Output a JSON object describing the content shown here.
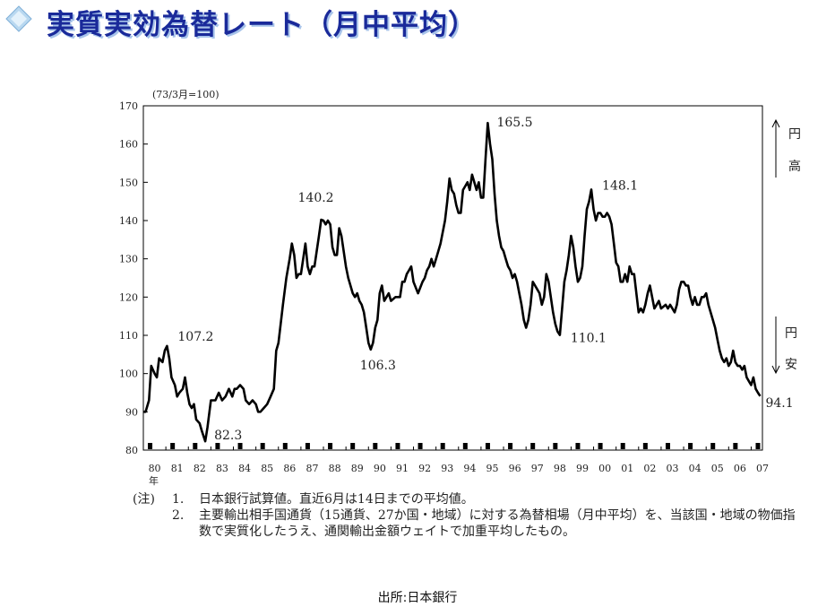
{
  "header": {
    "title": "実質実効為替レート（月中平均）",
    "logo_icon": "diamond-logo-icon",
    "title_color": "#1a2a9a"
  },
  "chart_data": {
    "type": "line",
    "title": "実質実効為替レート（月中平均）",
    "unit_label": "(73/3月=100)",
    "xlabel": "年",
    "x_ticks": [
      "80",
      "81",
      "82",
      "83",
      "84",
      "85",
      "86",
      "87",
      "88",
      "89",
      "90",
      "91",
      "92",
      "93",
      "94",
      "95",
      "96",
      "97",
      "98",
      "99",
      "00",
      "01",
      "02",
      "03",
      "04",
      "05",
      "06",
      "07"
    ],
    "ylim": [
      80,
      170
    ],
    "y_ticks": [
      80,
      90,
      100,
      110,
      120,
      130,
      140,
      150,
      160,
      170
    ],
    "grid": false,
    "line_color": "#000000",
    "series": [
      {
        "points": [
          [
            1980.0,
            90
          ],
          [
            1980.1,
            90
          ],
          [
            1980.25,
            93
          ],
          [
            1980.35,
            102
          ],
          [
            1980.5,
            100
          ],
          [
            1980.6,
            99
          ],
          [
            1980.7,
            104
          ],
          [
            1980.85,
            103
          ],
          [
            1980.95,
            106
          ],
          [
            1981.05,
            107.2
          ],
          [
            1981.15,
            104
          ],
          [
            1981.25,
            99
          ],
          [
            1981.4,
            97
          ],
          [
            1981.5,
            94
          ],
          [
            1981.6,
            95
          ],
          [
            1981.75,
            96
          ],
          [
            1981.85,
            99
          ],
          [
            1981.95,
            95
          ],
          [
            1982.05,
            92
          ],
          [
            1982.15,
            91
          ],
          [
            1982.25,
            92
          ],
          [
            1982.35,
            88
          ],
          [
            1982.5,
            87
          ],
          [
            1982.6,
            85
          ],
          [
            1982.75,
            82.3
          ],
          [
            1982.85,
            86
          ],
          [
            1983.0,
            93
          ],
          [
            1983.2,
            93
          ],
          [
            1983.35,
            95
          ],
          [
            1983.5,
            93
          ],
          [
            1983.65,
            94
          ],
          [
            1983.8,
            96
          ],
          [
            1983.95,
            94
          ],
          [
            1984.05,
            96
          ],
          [
            1984.15,
            96
          ],
          [
            1984.3,
            97
          ],
          [
            1984.45,
            96
          ],
          [
            1984.55,
            93
          ],
          [
            1984.7,
            92
          ],
          [
            1984.85,
            93
          ],
          [
            1985.0,
            92
          ],
          [
            1985.1,
            90
          ],
          [
            1985.2,
            90
          ],
          [
            1985.35,
            91
          ],
          [
            1985.5,
            92
          ],
          [
            1985.65,
            94
          ],
          [
            1985.8,
            96
          ],
          [
            1985.9,
            106
          ],
          [
            1986.0,
            108
          ],
          [
            1986.1,
            113
          ],
          [
            1986.2,
            118
          ],
          [
            1986.35,
            125
          ],
          [
            1986.5,
            130
          ],
          [
            1986.6,
            134
          ],
          [
            1986.7,
            131
          ],
          [
            1986.8,
            125
          ],
          [
            1986.9,
            126
          ],
          [
            1987.0,
            126
          ],
          [
            1987.1,
            130
          ],
          [
            1987.2,
            134
          ],
          [
            1987.3,
            128
          ],
          [
            1987.4,
            126
          ],
          [
            1987.5,
            128
          ],
          [
            1987.6,
            128
          ],
          [
            1987.7,
            132
          ],
          [
            1987.8,
            136
          ],
          [
            1987.9,
            140.2
          ],
          [
            1988.0,
            140
          ],
          [
            1988.1,
            139
          ],
          [
            1988.2,
            140
          ],
          [
            1988.3,
            139
          ],
          [
            1988.4,
            133
          ],
          [
            1988.5,
            131
          ],
          [
            1988.6,
            131
          ],
          [
            1988.7,
            138
          ],
          [
            1988.8,
            136
          ],
          [
            1988.9,
            132
          ],
          [
            1989.0,
            128
          ],
          [
            1989.1,
            125
          ],
          [
            1989.2,
            123
          ],
          [
            1989.3,
            121
          ],
          [
            1989.4,
            120
          ],
          [
            1989.5,
            121
          ],
          [
            1989.6,
            119
          ],
          [
            1989.7,
            118
          ],
          [
            1989.8,
            116
          ],
          [
            1989.9,
            112
          ],
          [
            1990.0,
            108
          ],
          [
            1990.1,
            106.3
          ],
          [
            1990.2,
            108
          ],
          [
            1990.3,
            112
          ],
          [
            1990.4,
            114
          ],
          [
            1990.5,
            121
          ],
          [
            1990.6,
            123
          ],
          [
            1990.7,
            119
          ],
          [
            1990.8,
            120
          ],
          [
            1990.9,
            121
          ],
          [
            1991.0,
            119
          ],
          [
            1991.2,
            120
          ],
          [
            1991.4,
            120
          ],
          [
            1991.5,
            124
          ],
          [
            1991.6,
            124
          ],
          [
            1991.7,
            126
          ],
          [
            1991.8,
            127
          ],
          [
            1991.9,
            128
          ],
          [
            1992.0,
            124
          ],
          [
            1992.2,
            121
          ],
          [
            1992.4,
            124
          ],
          [
            1992.5,
            125
          ],
          [
            1992.6,
            127
          ],
          [
            1992.7,
            128
          ],
          [
            1992.8,
            130
          ],
          [
            1992.9,
            128
          ],
          [
            1993.0,
            130
          ],
          [
            1993.2,
            134
          ],
          [
            1993.4,
            140
          ],
          [
            1993.5,
            145
          ],
          [
            1993.6,
            151
          ],
          [
            1993.7,
            148
          ],
          [
            1993.8,
            147
          ],
          [
            1993.9,
            144
          ],
          [
            1994.0,
            142
          ],
          [
            1994.1,
            142
          ],
          [
            1994.2,
            148
          ],
          [
            1994.3,
            149
          ],
          [
            1994.4,
            150
          ],
          [
            1994.5,
            148
          ],
          [
            1994.6,
            152
          ],
          [
            1994.7,
            150
          ],
          [
            1994.8,
            148
          ],
          [
            1994.9,
            150
          ],
          [
            1995.0,
            146
          ],
          [
            1995.1,
            146
          ],
          [
            1995.2,
            156
          ],
          [
            1995.3,
            165.5
          ],
          [
            1995.4,
            160
          ],
          [
            1995.5,
            156
          ],
          [
            1995.6,
            147
          ],
          [
            1995.7,
            140
          ],
          [
            1995.8,
            136
          ],
          [
            1995.9,
            133
          ],
          [
            1996.0,
            132
          ],
          [
            1996.1,
            130
          ],
          [
            1996.2,
            128
          ],
          [
            1996.3,
            127
          ],
          [
            1996.4,
            125
          ],
          [
            1996.5,
            126
          ],
          [
            1996.6,
            124
          ],
          [
            1996.7,
            121
          ],
          [
            1996.8,
            118
          ],
          [
            1996.9,
            114
          ],
          [
            1997.0,
            112
          ],
          [
            1997.1,
            114
          ],
          [
            1997.2,
            118
          ],
          [
            1997.3,
            124
          ],
          [
            1997.4,
            123
          ],
          [
            1997.5,
            122
          ],
          [
            1997.6,
            121
          ],
          [
            1997.7,
            118
          ],
          [
            1997.8,
            120
          ],
          [
            1997.9,
            126
          ],
          [
            1998.0,
            124
          ],
          [
            1998.1,
            120
          ],
          [
            1998.2,
            116
          ],
          [
            1998.3,
            113
          ],
          [
            1998.4,
            111
          ],
          [
            1998.5,
            110.1
          ],
          [
            1998.6,
            117
          ],
          [
            1998.7,
            124
          ],
          [
            1998.8,
            127
          ],
          [
            1998.9,
            131
          ],
          [
            1999.0,
            136
          ],
          [
            1999.1,
            133
          ],
          [
            1999.2,
            128
          ],
          [
            1999.3,
            124
          ],
          [
            1999.4,
            125
          ],
          [
            1999.5,
            128
          ],
          [
            1999.6,
            136
          ],
          [
            1999.7,
            143
          ],
          [
            1999.8,
            145
          ],
          [
            1999.9,
            148.1
          ],
          [
            2000.0,
            143
          ],
          [
            2000.1,
            140
          ],
          [
            2000.2,
            142
          ],
          [
            2000.3,
            142
          ],
          [
            2000.4,
            141
          ],
          [
            2000.5,
            141
          ],
          [
            2000.6,
            142
          ],
          [
            2000.7,
            141
          ],
          [
            2000.8,
            139
          ],
          [
            2000.9,
            134
          ],
          [
            2001.0,
            129
          ],
          [
            2001.1,
            128
          ],
          [
            2001.2,
            124
          ],
          [
            2001.3,
            124
          ],
          [
            2001.4,
            126
          ],
          [
            2001.5,
            124
          ],
          [
            2001.6,
            128
          ],
          [
            2001.7,
            126
          ],
          [
            2001.8,
            126
          ],
          [
            2001.9,
            121
          ],
          [
            2002.0,
            116
          ],
          [
            2002.1,
            117
          ],
          [
            2002.2,
            116
          ],
          [
            2002.3,
            118
          ],
          [
            2002.4,
            121
          ],
          [
            2002.5,
            123
          ],
          [
            2002.6,
            120
          ],
          [
            2002.7,
            117
          ],
          [
            2002.8,
            118
          ],
          [
            2002.9,
            119
          ],
          [
            2003.0,
            117
          ],
          [
            2003.2,
            118
          ],
          [
            2003.3,
            117
          ],
          [
            2003.4,
            118
          ],
          [
            2003.5,
            117
          ],
          [
            2003.6,
            116
          ],
          [
            2003.7,
            118
          ],
          [
            2003.8,
            122
          ],
          [
            2003.9,
            124
          ],
          [
            2004.0,
            124
          ],
          [
            2004.1,
            123
          ],
          [
            2004.2,
            123
          ],
          [
            2004.3,
            120
          ],
          [
            2004.4,
            118
          ],
          [
            2004.5,
            120
          ],
          [
            2004.6,
            118
          ],
          [
            2004.7,
            118
          ],
          [
            2004.8,
            120
          ],
          [
            2004.9,
            120
          ],
          [
            2005.0,
            121
          ],
          [
            2005.1,
            118
          ],
          [
            2005.2,
            116
          ],
          [
            2005.3,
            114
          ],
          [
            2005.4,
            112
          ],
          [
            2005.5,
            109
          ],
          [
            2005.6,
            106
          ],
          [
            2005.7,
            104
          ],
          [
            2005.8,
            103
          ],
          [
            2005.9,
            104
          ],
          [
            2006.0,
            102
          ],
          [
            2006.1,
            103
          ],
          [
            2006.2,
            106
          ],
          [
            2006.3,
            103
          ],
          [
            2006.4,
            102
          ],
          [
            2006.5,
            102
          ],
          [
            2006.6,
            101
          ],
          [
            2006.7,
            102
          ],
          [
            2006.8,
            99
          ],
          [
            2006.9,
            98
          ],
          [
            2007.0,
            97
          ],
          [
            2007.1,
            99
          ],
          [
            2007.2,
            96
          ],
          [
            2007.3,
            95
          ],
          [
            2007.4,
            94.1
          ]
        ]
      }
    ],
    "annotations": [
      {
        "text": "107.2",
        "x": 1981.05,
        "y": 107.2,
        "anchor": "upper-right"
      },
      {
        "text": "82.3",
        "x": 1982.75,
        "y": 82.3,
        "anchor": "right"
      },
      {
        "text": "140.2",
        "x": 1987.9,
        "y": 140.2,
        "anchor": "above"
      },
      {
        "text": "106.3",
        "x": 1990.1,
        "y": 106.3,
        "anchor": "below-right"
      },
      {
        "text": "165.5",
        "x": 1995.3,
        "y": 165.5,
        "anchor": "right"
      },
      {
        "text": "110.1",
        "x": 1998.5,
        "y": 110.1,
        "anchor": "right"
      },
      {
        "text": "148.1",
        "x": 1999.9,
        "y": 148.1,
        "anchor": "right"
      },
      {
        "text": "94.1",
        "x": 2007.4,
        "y": 94.1,
        "anchor": "below-right"
      }
    ],
    "side_labels": {
      "appreciation": "円高",
      "depreciation": "円安"
    },
    "recession_marks_x": [
      1980.3,
      1981.3,
      1982.3,
      1983.3,
      1984.3,
      1985.3,
      1986.3,
      1987.3,
      1988.3,
      1989.3,
      1990.3,
      1991.3,
      1992.3,
      1993.3,
      1994.3,
      1995.3,
      1996.3,
      1997.3,
      1998.3,
      1999.3,
      2000.3,
      2001.3,
      2002.3,
      2003.3,
      2004.3,
      2005.3,
      2006.3,
      2007.3
    ]
  },
  "notes": {
    "head": "(注)",
    "items": [
      {
        "num": "1.",
        "text": "日本銀行試算値。直近6月は14日までの平均値。"
      },
      {
        "num": "2.",
        "text": "主要輸出相手国通貨（15通貨、27か国・地域）に対する為替相場（月中平均）を、当該国・地域の物価指数で実質化したうえ、通関輸出金額ウェイトで加重平均したもの。"
      }
    ]
  },
  "source": "出所:日本銀行"
}
